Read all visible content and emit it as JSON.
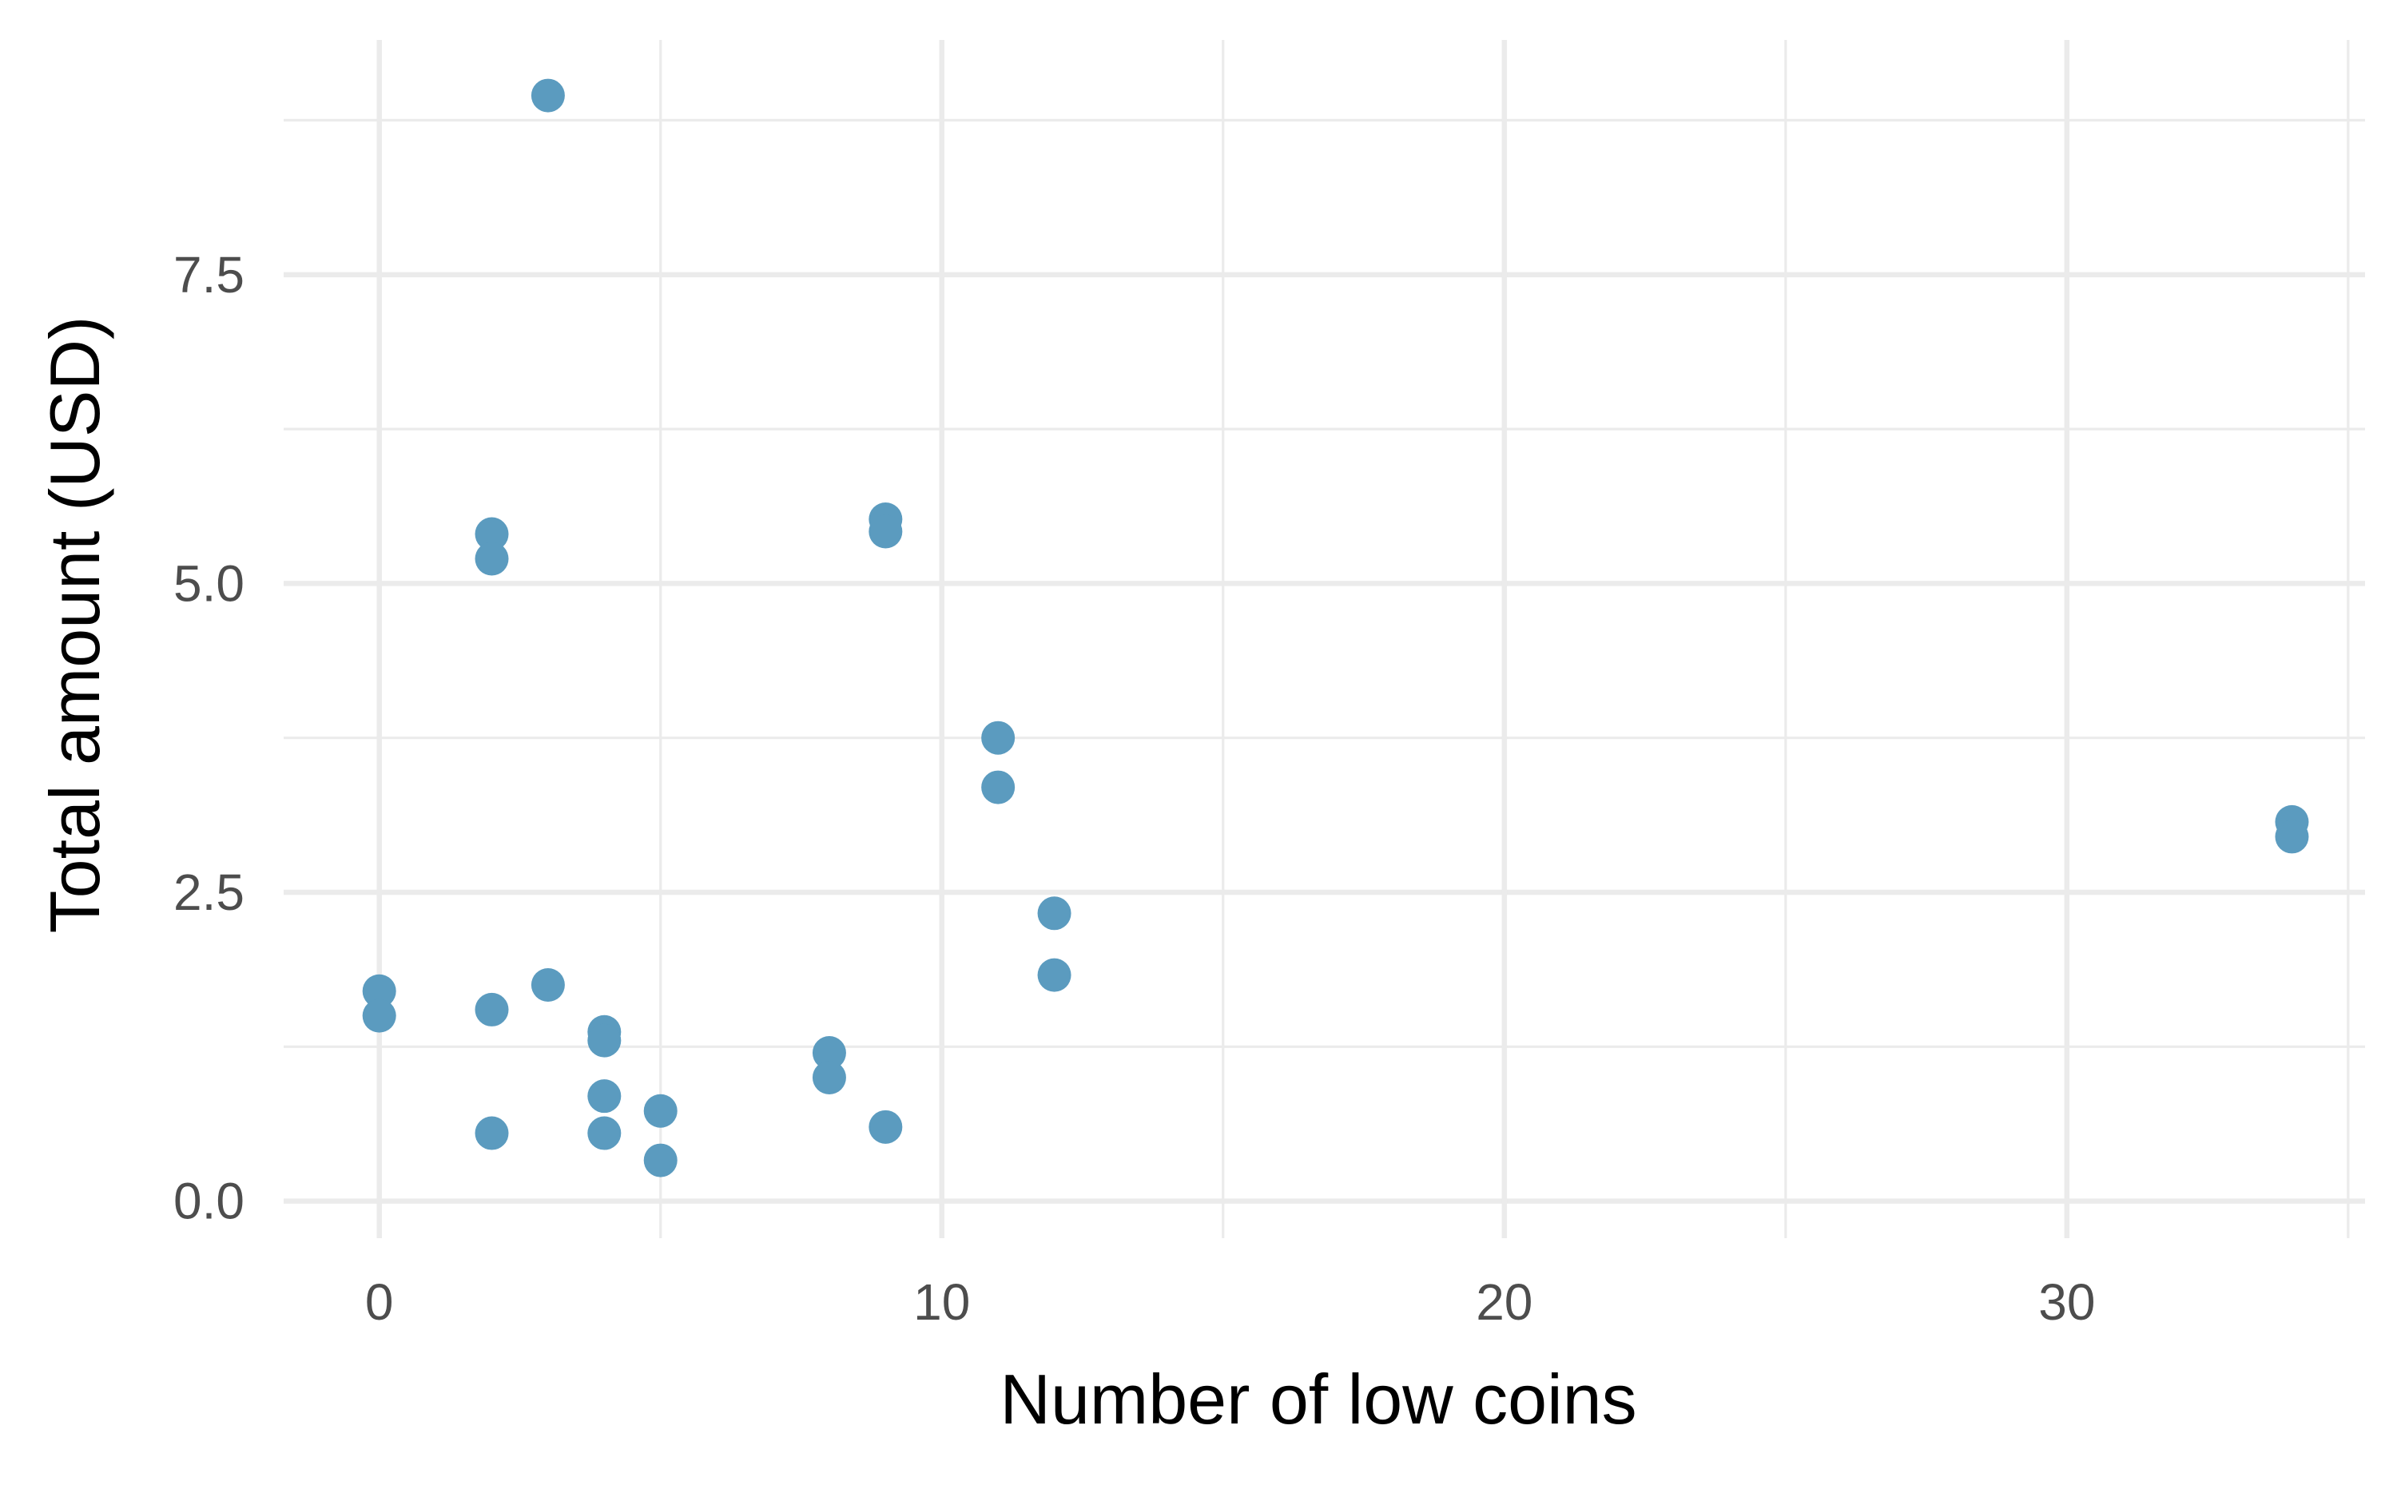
{
  "chart_data": {
    "type": "scatter",
    "title": "",
    "xlabel": "Number of low coins",
    "ylabel": "Total amount (USD)",
    "xlim": [
      -1.7,
      35.3
    ],
    "ylim": [
      -0.3,
      9.4
    ],
    "x_ticks": [
      0,
      10,
      20,
      30
    ],
    "x_tick_labels": [
      "0",
      "10",
      "20",
      "30"
    ],
    "x_minor_ticks": [
      5,
      15,
      25,
      35
    ],
    "y_ticks": [
      0,
      2.5,
      5,
      7.5
    ],
    "y_tick_labels": [
      "0.0",
      "2.5",
      "5.0",
      "7.5"
    ],
    "y_minor_ticks": [
      1.25,
      3.75,
      6.25,
      8.75
    ],
    "grid": true,
    "legend": "none",
    "point_color": "#5b9bbf",
    "background": "#ffffff",
    "grid_color": "#ebebeb",
    "points": [
      {
        "x": 0,
        "y": 1.7
      },
      {
        "x": 0,
        "y": 1.5
      },
      {
        "x": 2,
        "y": 5.4
      },
      {
        "x": 2,
        "y": 5.2
      },
      {
        "x": 2,
        "y": 1.55
      },
      {
        "x": 2,
        "y": 0.55
      },
      {
        "x": 3,
        "y": 8.95
      },
      {
        "x": 3,
        "y": 1.75
      },
      {
        "x": 4,
        "y": 1.37
      },
      {
        "x": 4,
        "y": 1.3
      },
      {
        "x": 4,
        "y": 0.85
      },
      {
        "x": 4,
        "y": 0.55
      },
      {
        "x": 5,
        "y": 0.73
      },
      {
        "x": 5,
        "y": 0.33
      },
      {
        "x": 8,
        "y": 1.2
      },
      {
        "x": 8,
        "y": 1.0
      },
      {
        "x": 9,
        "y": 5.52
      },
      {
        "x": 9,
        "y": 5.42
      },
      {
        "x": 9,
        "y": 0.6
      },
      {
        "x": 11,
        "y": 3.75
      },
      {
        "x": 11,
        "y": 3.35
      },
      {
        "x": 12,
        "y": 2.33
      },
      {
        "x": 12,
        "y": 1.83
      },
      {
        "x": 34,
        "y": 3.07
      },
      {
        "x": 34,
        "y": 2.95
      }
    ]
  }
}
